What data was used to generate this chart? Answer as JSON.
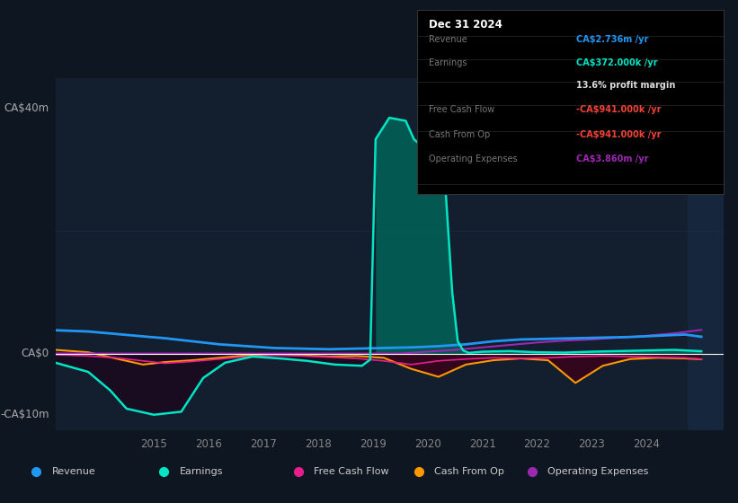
{
  "bg_color": "#0e1621",
  "plot_bg_color": "#131e2e",
  "grid_color": "#1e2d45",
  "zero_line_color": "#ffffff",
  "ylim": [
    -12500000,
    45000000
  ],
  "xlim_left": 2013.2,
  "xlim_right": 2025.4,
  "xticks": [
    2015,
    2016,
    2017,
    2018,
    2019,
    2020,
    2021,
    2022,
    2023,
    2024
  ],
  "shade_start": 2024.75,
  "y_labels": [
    {
      "y": 40000000,
      "label": "CA$40m"
    },
    {
      "y": 0,
      "label": "CA$0"
    },
    {
      "y": -10000000,
      "label": "-CA$10m"
    }
  ],
  "legend_items": [
    {
      "label": "Revenue",
      "color": "#2196f3"
    },
    {
      "label": "Earnings",
      "color": "#00e5c4"
    },
    {
      "label": "Free Cash Flow",
      "color": "#e91e8c"
    },
    {
      "label": "Cash From Op",
      "color": "#ff9800"
    },
    {
      "label": "Operating Expenses",
      "color": "#9c27b0"
    }
  ],
  "info_box": {
    "title": "Dec 31 2024",
    "rows": [
      {
        "label": "Revenue",
        "value": "CA$2.736m /yr",
        "value_color": "#2196f3"
      },
      {
        "label": "Earnings",
        "value": "CA$372.000k /yr",
        "value_color": "#00e5c4"
      },
      {
        "label": "",
        "value": "13.6% profit margin",
        "value_color": "#dddddd"
      },
      {
        "label": "Free Cash Flow",
        "value": "-CA$941.000k /yr",
        "value_color": "#f44336"
      },
      {
        "label": "Cash From Op",
        "value": "-CA$941.000k /yr",
        "value_color": "#f44336"
      },
      {
        "label": "Operating Expenses",
        "value": "CA$3.860m /yr",
        "value_color": "#9c27b0"
      }
    ]
  },
  "revenue_x": [
    2013.2,
    2013.8,
    2014.3,
    2014.8,
    2015.2,
    2015.7,
    2016.2,
    2016.7,
    2017.2,
    2017.7,
    2018.2,
    2018.7,
    2019.2,
    2019.7,
    2020.2,
    2020.7,
    2021.2,
    2021.7,
    2022.2,
    2022.7,
    2023.2,
    2023.7,
    2024.2,
    2024.7,
    2025.0
  ],
  "revenue_y": [
    3800000,
    3600000,
    3200000,
    2800000,
    2500000,
    2000000,
    1500000,
    1200000,
    900000,
    800000,
    700000,
    800000,
    900000,
    1000000,
    1200000,
    1500000,
    2000000,
    2300000,
    2400000,
    2500000,
    2600000,
    2700000,
    2900000,
    3100000,
    2736000
  ],
  "earnings_x": [
    2013.2,
    2013.8,
    2014.2,
    2014.5,
    2015.0,
    2015.5,
    2015.9,
    2016.3,
    2016.8,
    2017.3,
    2017.8,
    2018.3,
    2018.8,
    2018.95,
    2019.05,
    2019.3,
    2019.6,
    2019.75,
    2020.0,
    2020.1,
    2020.3,
    2020.45,
    2020.55,
    2020.65,
    2020.75,
    2021.0,
    2021.5,
    2022.0,
    2022.5,
    2023.0,
    2023.5,
    2024.0,
    2024.5,
    2025.0
  ],
  "earnings_y": [
    -1500000,
    -3000000,
    -6000000,
    -9000000,
    -10000000,
    -9500000,
    -4000000,
    -1500000,
    -500000,
    -800000,
    -1200000,
    -1800000,
    -2000000,
    -1000000,
    35000000,
    38500000,
    38000000,
    35000000,
    33000000,
    32000000,
    30500000,
    10000000,
    2000000,
    500000,
    100000,
    300000,
    400000,
    200000,
    150000,
    300000,
    400000,
    500000,
    600000,
    372000
  ],
  "fcf_x": [
    2013.2,
    2013.8,
    2014.3,
    2014.8,
    2015.2,
    2015.7,
    2016.2,
    2016.7,
    2017.2,
    2017.7,
    2018.2,
    2018.7,
    2019.2,
    2019.7,
    2020.2,
    2020.7,
    2021.2,
    2021.7,
    2022.2,
    2022.7,
    2023.2,
    2023.7,
    2024.2,
    2024.7,
    2025.0
  ],
  "fcf_y": [
    -200000,
    -400000,
    -700000,
    -1200000,
    -1600000,
    -1300000,
    -900000,
    -500000,
    -300000,
    -400000,
    -600000,
    -800000,
    -1200000,
    -1800000,
    -1200000,
    -900000,
    -700000,
    -800000,
    -700000,
    -500000,
    -400000,
    -500000,
    -600000,
    -700000,
    -941000
  ],
  "cfo_x": [
    2013.2,
    2013.8,
    2014.3,
    2014.8,
    2015.2,
    2015.7,
    2016.2,
    2016.7,
    2017.2,
    2017.7,
    2018.2,
    2018.7,
    2019.2,
    2019.7,
    2020.2,
    2020.7,
    2021.2,
    2021.7,
    2022.2,
    2022.7,
    2023.2,
    2023.7,
    2024.2,
    2024.7,
    2025.0
  ],
  "cfo_y": [
    600000,
    200000,
    -800000,
    -1800000,
    -1400000,
    -1100000,
    -700000,
    -300000,
    -100000,
    -300000,
    -500000,
    -400000,
    -700000,
    -2500000,
    -3800000,
    -1800000,
    -1100000,
    -800000,
    -1100000,
    -4800000,
    -2000000,
    -900000,
    -700000,
    -800000,
    -941000
  ],
  "opex_x": [
    2013.2,
    2014.0,
    2015.0,
    2016.0,
    2017.0,
    2018.0,
    2019.0,
    2019.5,
    2020.0,
    2020.5,
    2021.0,
    2021.5,
    2022.0,
    2022.5,
    2023.0,
    2023.5,
    2024.0,
    2024.5,
    2025.0
  ],
  "opex_y": [
    0,
    0,
    0,
    0,
    0,
    0,
    0,
    0,
    300000,
    600000,
    1000000,
    1400000,
    1800000,
    2100000,
    2300000,
    2600000,
    2900000,
    3300000,
    3860000
  ]
}
